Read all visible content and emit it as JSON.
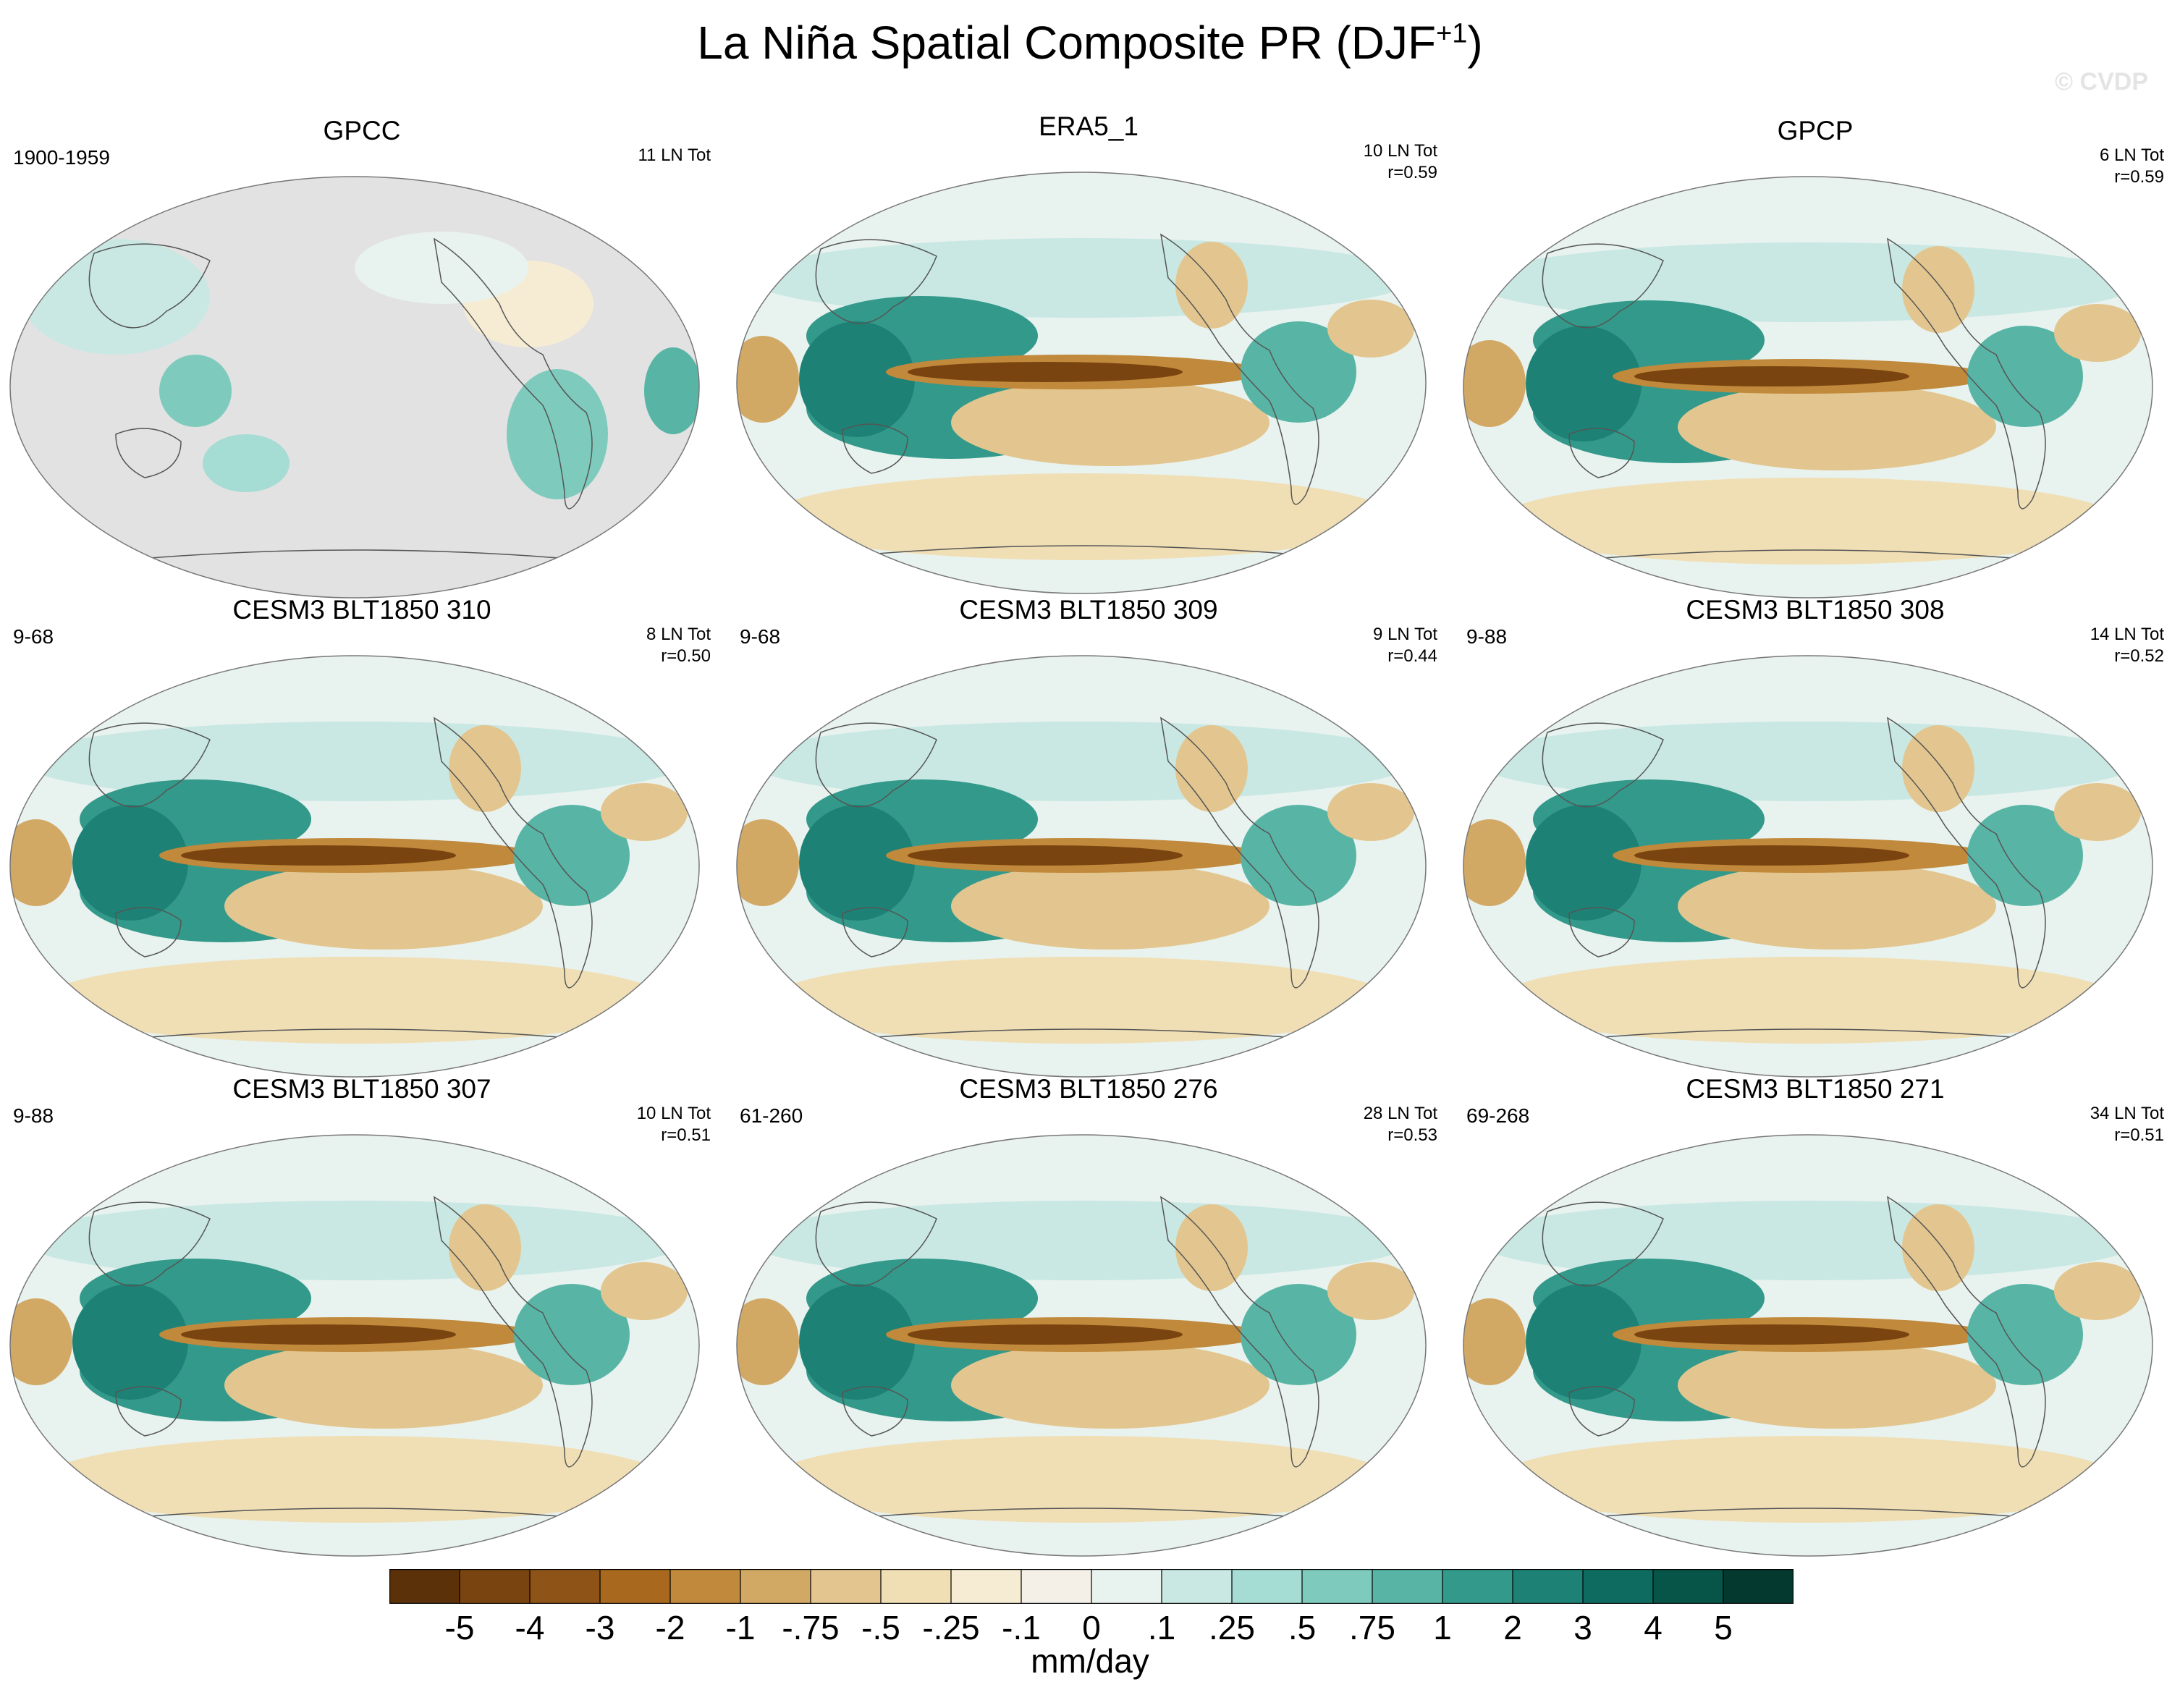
{
  "title": "La Niña Spatial Composite PR (DJF",
  "title_sup": "+1",
  "title_close": ")",
  "watermark": "© CVDP",
  "chart_data": {
    "type": "heatmap",
    "description_units": "mm/day",
    "colorbar": {
      "levels": [
        "-5",
        "-4",
        "-3",
        "-2",
        "-1",
        "-.75",
        "-.5",
        "-.25",
        "-.1",
        "0",
        ".1",
        ".25",
        ".5",
        ".75",
        "1",
        "2",
        "3",
        "4",
        "5"
      ],
      "colors": [
        "#5a3108",
        "#7a4410",
        "#8e5316",
        "#a8691f",
        "#c0893b",
        "#d2a865",
        "#e3c68f",
        "#f0dfb5",
        "#f6ecd4",
        "#f4f0e8",
        "#e8f2ef",
        "#c9e8e3",
        "#a5dcd3",
        "#7ecbbd",
        "#58b5a5",
        "#33998a",
        "#1d8275",
        "#0e6b5f",
        "#075448",
        "#03392f"
      ],
      "units": "mm/day"
    },
    "panels": [
      {
        "title": "GPCC",
        "left": "1900-1959",
        "right1": "11 LN Tot",
        "right2": "",
        "masked_ocean": true
      },
      {
        "title": "ERA5_1",
        "left": "",
        "right1": "10 LN Tot",
        "right2": "r=0.59",
        "masked_ocean": false
      },
      {
        "title": "GPCP",
        "left": "",
        "right1": "6 LN Tot",
        "right2": "r=0.59",
        "masked_ocean": false
      },
      {
        "title": "CESM3 BLT1850 310",
        "left": "9-68",
        "right1": "8 LN Tot",
        "right2": "r=0.50",
        "masked_ocean": false
      },
      {
        "title": "CESM3 BLT1850 309",
        "left": "9-68",
        "right1": "9 LN Tot",
        "right2": "r=0.44",
        "masked_ocean": false
      },
      {
        "title": "CESM3 BLT1850 308",
        "left": "9-88",
        "right1": "14 LN Tot",
        "right2": "r=0.52",
        "masked_ocean": false
      },
      {
        "title": "CESM3 BLT1850 307",
        "left": "9-88",
        "right1": "10 LN Tot",
        "right2": "r=0.51",
        "masked_ocean": false
      },
      {
        "title": "CESM3 BLT1850 276",
        "left": "61-260",
        "right1": "28 LN Tot",
        "right2": "r=0.53",
        "masked_ocean": false
      },
      {
        "title": "CESM3 BLT1850 271",
        "left": "69-268",
        "right1": "34 LN Tot",
        "right2": "r=0.51",
        "masked_ocean": false
      }
    ]
  }
}
